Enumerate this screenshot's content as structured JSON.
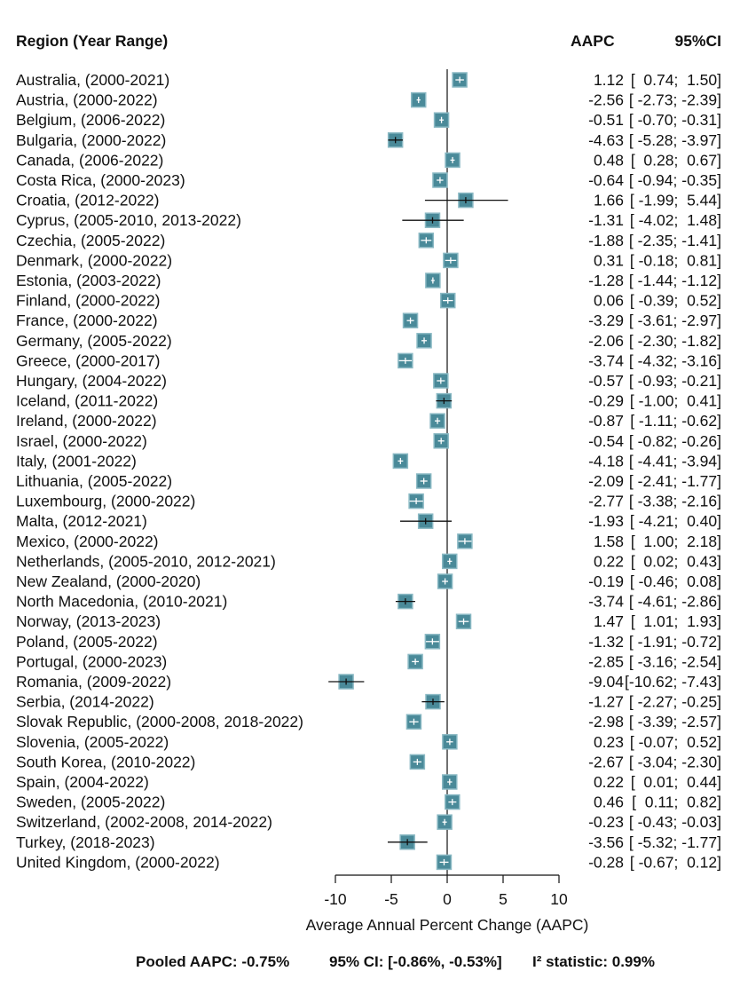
{
  "header": {
    "region": "Region (Year Range)",
    "aapc": "AAPC",
    "ci": "95%CI"
  },
  "colors": {
    "box": "#4a8a99",
    "box_border": "#8ab9c4",
    "ci_line": "#111111",
    "axis": "#111111"
  },
  "footer": {
    "pooled": "Pooled AAPC: -0.75%",
    "ci": "95% CI: [-0.86%, -0.53%]",
    "i2": "I² statistic: 0.99%"
  },
  "chart_data": {
    "type": "forest",
    "xlabel": "Average Annual Percent Change (AAPC)",
    "xlim": [
      -10,
      10
    ],
    "xticks": [
      -10,
      -5,
      0,
      5,
      10
    ],
    "reference_line": 0,
    "rows": [
      {
        "label": "Australia, (2000-2021)",
        "aapc": 1.12,
        "lower": 0.74,
        "upper": 1.5,
        "aapc_text": "1.12",
        "ci_text": "[  0.74;  1.50]"
      },
      {
        "label": "Austria, (2000-2022)",
        "aapc": -2.56,
        "lower": -2.73,
        "upper": -2.39,
        "aapc_text": "-2.56",
        "ci_text": "[ -2.73; -2.39]"
      },
      {
        "label": "Belgium, (2006-2022)",
        "aapc": -0.51,
        "lower": -0.7,
        "upper": -0.31,
        "aapc_text": "-0.51",
        "ci_text": "[ -0.70; -0.31]"
      },
      {
        "label": "Bulgaria, (2000-2022)",
        "aapc": -4.63,
        "lower": -5.28,
        "upper": -3.97,
        "aapc_text": "-4.63",
        "ci_text": "[ -5.28; -3.97]"
      },
      {
        "label": "Canada, (2006-2022)",
        "aapc": 0.48,
        "lower": 0.28,
        "upper": 0.67,
        "aapc_text": "0.48",
        "ci_text": "[  0.28;  0.67]"
      },
      {
        "label": "Costa Rica, (2000-2023)",
        "aapc": -0.64,
        "lower": -0.94,
        "upper": -0.35,
        "aapc_text": "-0.64",
        "ci_text": "[ -0.94; -0.35]"
      },
      {
        "label": "Croatia, (2012-2022)",
        "aapc": 1.66,
        "lower": -1.99,
        "upper": 5.44,
        "aapc_text": "1.66",
        "ci_text": "[ -1.99;  5.44]"
      },
      {
        "label": "Cyprus, (2005-2010, 2013-2022)",
        "aapc": -1.31,
        "lower": -4.02,
        "upper": 1.48,
        "aapc_text": "-1.31",
        "ci_text": "[ -4.02;  1.48]"
      },
      {
        "label": "Czechia, (2005-2022)",
        "aapc": -1.88,
        "lower": -2.35,
        "upper": -1.41,
        "aapc_text": "-1.88",
        "ci_text": "[ -2.35; -1.41]"
      },
      {
        "label": "Denmark, (2000-2022)",
        "aapc": 0.31,
        "lower": -0.18,
        "upper": 0.81,
        "aapc_text": "0.31",
        "ci_text": "[ -0.18;  0.81]"
      },
      {
        "label": "Estonia, (2003-2022)",
        "aapc": -1.28,
        "lower": -1.44,
        "upper": -1.12,
        "aapc_text": "-1.28",
        "ci_text": "[ -1.44; -1.12]"
      },
      {
        "label": "Finland, (2000-2022)",
        "aapc": 0.06,
        "lower": -0.39,
        "upper": 0.52,
        "aapc_text": "0.06",
        "ci_text": "[ -0.39;  0.52]"
      },
      {
        "label": "France, (2000-2022)",
        "aapc": -3.29,
        "lower": -3.61,
        "upper": -2.97,
        "aapc_text": "-3.29",
        "ci_text": "[ -3.61; -2.97]"
      },
      {
        "label": "Germany, (2005-2022)",
        "aapc": -2.06,
        "lower": -2.3,
        "upper": -1.82,
        "aapc_text": "-2.06",
        "ci_text": "[ -2.30; -1.82]"
      },
      {
        "label": "Greece, (2000-2017)",
        "aapc": -3.74,
        "lower": -4.32,
        "upper": -3.16,
        "aapc_text": "-3.74",
        "ci_text": "[ -4.32; -3.16]"
      },
      {
        "label": "Hungary, (2004-2022)",
        "aapc": -0.57,
        "lower": -0.93,
        "upper": -0.21,
        "aapc_text": "-0.57",
        "ci_text": "[ -0.93; -0.21]"
      },
      {
        "label": "Iceland, (2011-2022)",
        "aapc": -0.29,
        "lower": -1.0,
        "upper": 0.41,
        "aapc_text": "-0.29",
        "ci_text": "[ -1.00;  0.41]"
      },
      {
        "label": "Ireland, (2000-2022)",
        "aapc": -0.87,
        "lower": -1.11,
        "upper": -0.62,
        "aapc_text": "-0.87",
        "ci_text": "[ -1.11; -0.62]"
      },
      {
        "label": "Israel, (2000-2022)",
        "aapc": -0.54,
        "lower": -0.82,
        "upper": -0.26,
        "aapc_text": "-0.54",
        "ci_text": "[ -0.82; -0.26]"
      },
      {
        "label": "Italy, (2001-2022)",
        "aapc": -4.18,
        "lower": -4.41,
        "upper": -3.94,
        "aapc_text": "-4.18",
        "ci_text": "[ -4.41; -3.94]"
      },
      {
        "label": "Lithuania, (2005-2022)",
        "aapc": -2.09,
        "lower": -2.41,
        "upper": -1.77,
        "aapc_text": "-2.09",
        "ci_text": "[ -2.41; -1.77]"
      },
      {
        "label": "Luxembourg, (2000-2022)",
        "aapc": -2.77,
        "lower": -3.38,
        "upper": -2.16,
        "aapc_text": "-2.77",
        "ci_text": "[ -3.38; -2.16]"
      },
      {
        "label": "Malta, (2012-2021)",
        "aapc": -1.93,
        "lower": -4.21,
        "upper": 0.4,
        "aapc_text": "-1.93",
        "ci_text": "[ -4.21;  0.40]"
      },
      {
        "label": "Mexico, (2000-2022)",
        "aapc": 1.58,
        "lower": 1.0,
        "upper": 2.18,
        "aapc_text": "1.58",
        "ci_text": "[  1.00;  2.18]"
      },
      {
        "label": "Netherlands, (2005-2010, 2012-2021)",
        "aapc": 0.22,
        "lower": 0.02,
        "upper": 0.43,
        "aapc_text": "0.22",
        "ci_text": "[  0.02;  0.43]"
      },
      {
        "label": "New Zealand, (2000-2020)",
        "aapc": -0.19,
        "lower": -0.46,
        "upper": 0.08,
        "aapc_text": "-0.19",
        "ci_text": "[ -0.46;  0.08]"
      },
      {
        "label": "North Macedonia, (2010-2021)",
        "aapc": -3.74,
        "lower": -4.61,
        "upper": -2.86,
        "aapc_text": "-3.74",
        "ci_text": "[ -4.61; -2.86]"
      },
      {
        "label": "Norway, (2013-2023)",
        "aapc": 1.47,
        "lower": 1.01,
        "upper": 1.93,
        "aapc_text": "1.47",
        "ci_text": "[  1.01;  1.93]"
      },
      {
        "label": "Poland, (2005-2022)",
        "aapc": -1.32,
        "lower": -1.91,
        "upper": -0.72,
        "aapc_text": "-1.32",
        "ci_text": "[ -1.91; -0.72]"
      },
      {
        "label": "Portugal, (2000-2023)",
        "aapc": -2.85,
        "lower": -3.16,
        "upper": -2.54,
        "aapc_text": "-2.85",
        "ci_text": "[ -3.16; -2.54]"
      },
      {
        "label": "Romania, (2009-2022)",
        "aapc": -9.04,
        "lower": -10.62,
        "upper": -7.43,
        "aapc_text": "-9.04",
        "ci_text": "[-10.62; -7.43]"
      },
      {
        "label": "Serbia, (2014-2022)",
        "aapc": -1.27,
        "lower": -2.27,
        "upper": -0.25,
        "aapc_text": "-1.27",
        "ci_text": "[ -2.27; -0.25]"
      },
      {
        "label": "Slovak Republic, (2000-2008, 2018-2022)",
        "aapc": -2.98,
        "lower": -3.39,
        "upper": -2.57,
        "aapc_text": "-2.98",
        "ci_text": "[ -3.39; -2.57]"
      },
      {
        "label": "Slovenia, (2005-2022)",
        "aapc": 0.23,
        "lower": -0.07,
        "upper": 0.52,
        "aapc_text": "0.23",
        "ci_text": "[ -0.07;  0.52]"
      },
      {
        "label": "South Korea, (2010-2022)",
        "aapc": -2.67,
        "lower": -3.04,
        "upper": -2.3,
        "aapc_text": "-2.67",
        "ci_text": "[ -3.04; -2.30]"
      },
      {
        "label": "Spain, (2004-2022)",
        "aapc": 0.22,
        "lower": 0.01,
        "upper": 0.44,
        "aapc_text": "0.22",
        "ci_text": "[  0.01;  0.44]"
      },
      {
        "label": "Sweden, (2005-2022)",
        "aapc": 0.46,
        "lower": 0.11,
        "upper": 0.82,
        "aapc_text": "0.46",
        "ci_text": "[  0.11;  0.82]"
      },
      {
        "label": "Switzerland, (2002-2008, 2014-2022)",
        "aapc": -0.23,
        "lower": -0.43,
        "upper": -0.03,
        "aapc_text": "-0.23",
        "ci_text": "[ -0.43; -0.03]"
      },
      {
        "label": "Turkey, (2018-2023)",
        "aapc": -3.56,
        "lower": -5.32,
        "upper": -1.77,
        "aapc_text": "-3.56",
        "ci_text": "[ -5.32; -1.77]"
      },
      {
        "label": "United Kingdom, (2000-2022)",
        "aapc": -0.28,
        "lower": -0.67,
        "upper": 0.12,
        "aapc_text": "-0.28",
        "ci_text": "[ -0.67;  0.12]"
      }
    ]
  }
}
